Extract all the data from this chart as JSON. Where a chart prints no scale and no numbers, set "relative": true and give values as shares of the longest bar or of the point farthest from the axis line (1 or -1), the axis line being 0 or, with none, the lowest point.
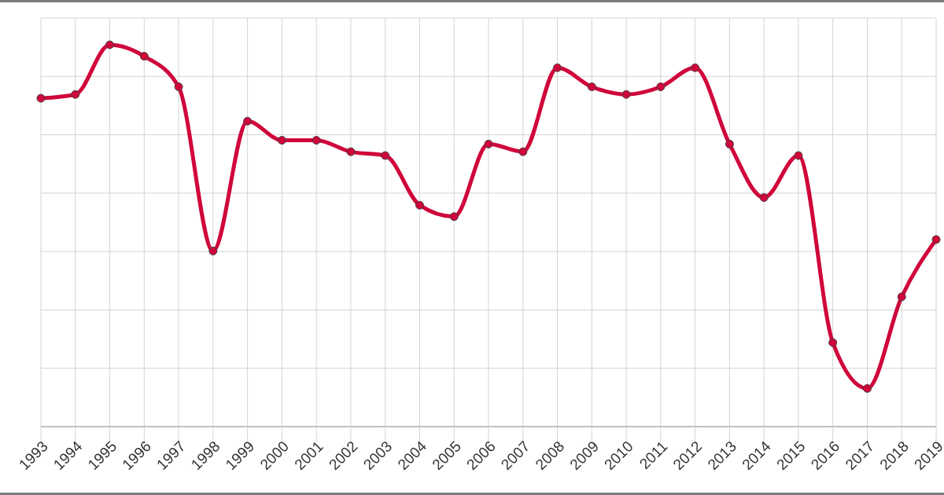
{
  "chart_data": {
    "type": "line",
    "relative": true,
    "grid": true,
    "marker": "circle",
    "line_style": "solid",
    "categories": [
      "1993",
      "1994",
      "1995",
      "1996",
      "1997",
      "1998",
      "1999",
      "2000",
      "2001",
      "2002",
      "2003",
      "2004",
      "2005",
      "2006",
      "2007",
      "2008",
      "2009",
      "2010",
      "2011",
      "2012",
      "2013",
      "2014",
      "2015",
      "2016",
      "2017",
      "2018",
      "2019"
    ],
    "series": [
      {
        "color": "#d0063a",
        "values": [
          0.86,
          0.87,
          1,
          0.97,
          0.89,
          0.46,
          0.8,
          0.75,
          0.75,
          0.72,
          0.71,
          0.58,
          0.55,
          0.74,
          0.72,
          0.94,
          0.89,
          0.87,
          0.89,
          0.94,
          0.74,
          0.6,
          0.71,
          0.22,
          0.1,
          0.34,
          0.49
        ]
      }
    ]
  }
}
